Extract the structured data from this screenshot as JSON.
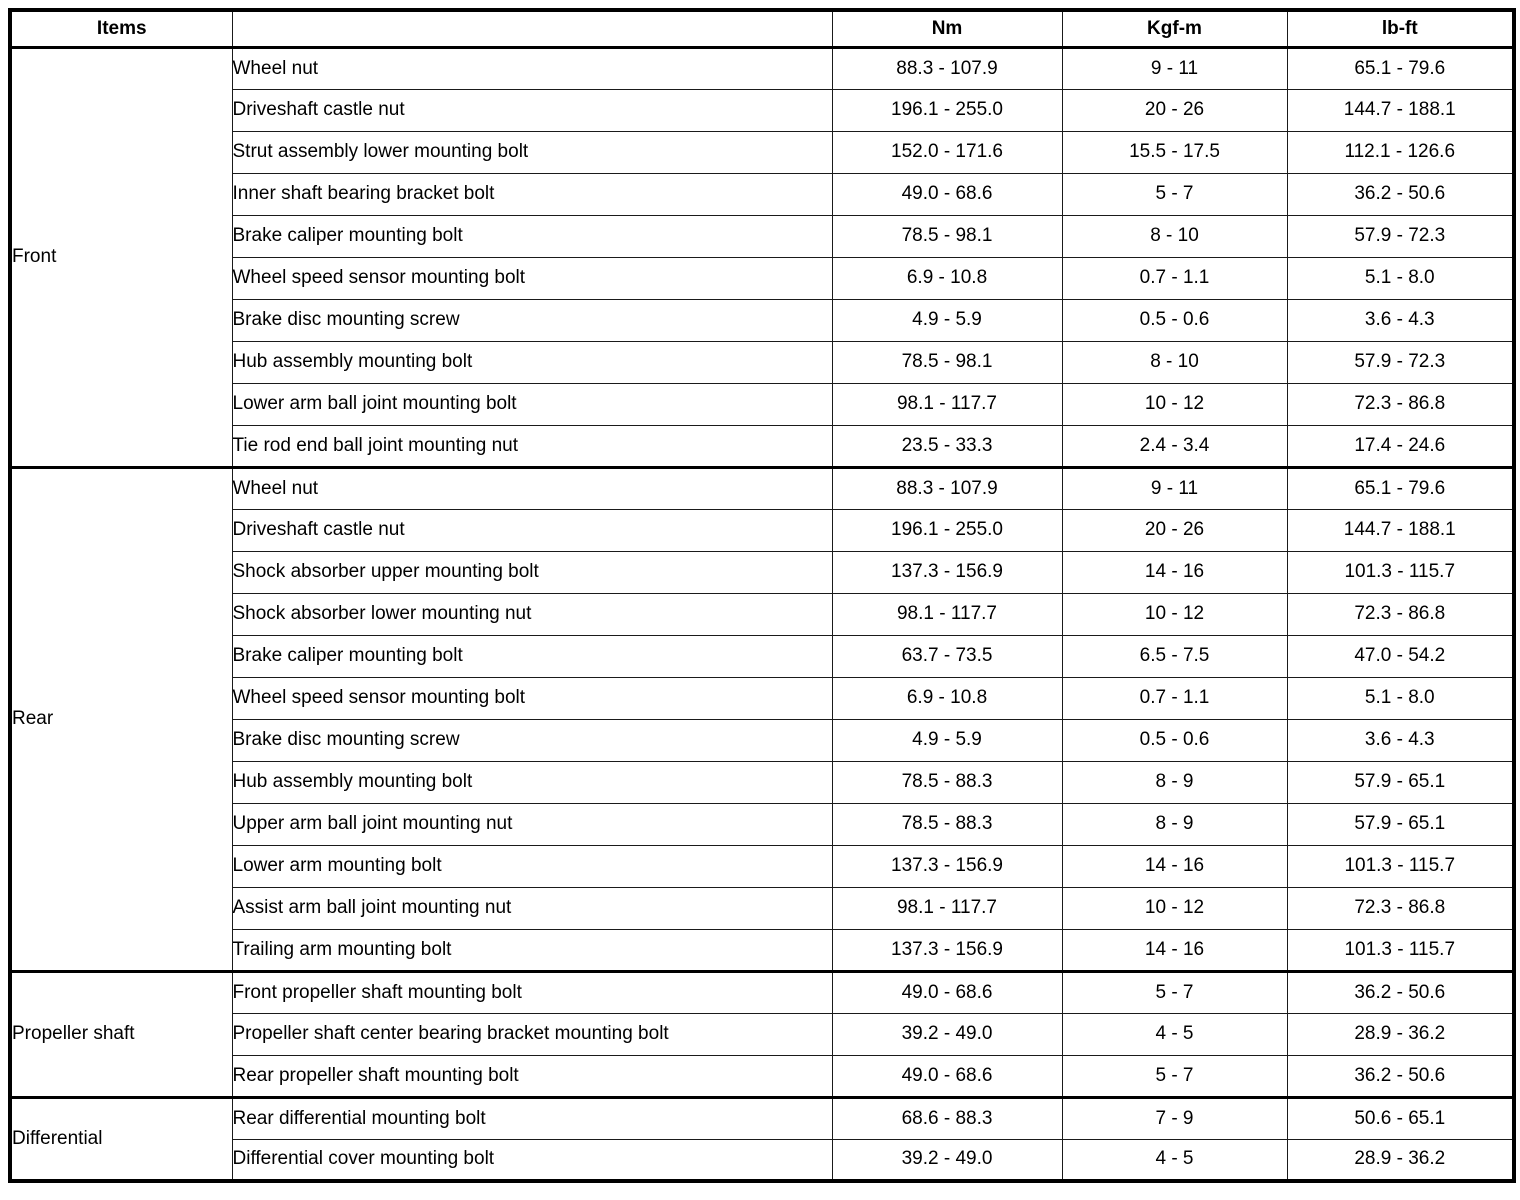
{
  "table": {
    "headers": {
      "items": "Items",
      "item": "",
      "nm": "Nm",
      "kgfm": "Kgf-m",
      "lbft": "lb-ft"
    },
    "groups": [
      {
        "label": "Front",
        "rows": [
          {
            "item": "Wheel nut",
            "nm": "88.3 - 107.9",
            "kgfm": "9 - 11",
            "lbft": "65.1 - 79.6"
          },
          {
            "item": "Driveshaft castle nut",
            "nm": "196.1 - 255.0",
            "kgfm": "20 - 26",
            "lbft": "144.7 - 188.1"
          },
          {
            "item": "Strut assembly lower mounting bolt",
            "nm": "152.0 - 171.6",
            "kgfm": "15.5 - 17.5",
            "lbft": "112.1 - 126.6"
          },
          {
            "item": "Inner shaft bearing bracket bolt",
            "nm": "49.0 - 68.6",
            "kgfm": "5 - 7",
            "lbft": "36.2 - 50.6"
          },
          {
            "item": "Brake caliper mounting bolt",
            "nm": "78.5 - 98.1",
            "kgfm": "8 - 10",
            "lbft": "57.9 - 72.3"
          },
          {
            "item": "Wheel speed sensor mounting bolt",
            "nm": "6.9 - 10.8",
            "kgfm": "0.7 - 1.1",
            "lbft": "5.1 - 8.0"
          },
          {
            "item": "Brake disc mounting screw",
            "nm": "4.9 - 5.9",
            "kgfm": "0.5 - 0.6",
            "lbft": "3.6 - 4.3"
          },
          {
            "item": "Hub assembly mounting bolt",
            "nm": "78.5 - 98.1",
            "kgfm": "8 - 10",
            "lbft": "57.9 - 72.3"
          },
          {
            "item": "Lower arm ball joint mounting bolt",
            "nm": "98.1 - 117.7",
            "kgfm": "10 - 12",
            "lbft": "72.3 - 86.8"
          },
          {
            "item": "Tie rod end ball joint mounting nut",
            "nm": "23.5 - 33.3",
            "kgfm": "2.4 - 3.4",
            "lbft": "17.4 - 24.6"
          }
        ]
      },
      {
        "label": "Rear",
        "rows": [
          {
            "item": "Wheel nut",
            "nm": "88.3 - 107.9",
            "kgfm": "9 - 11",
            "lbft": "65.1 - 79.6"
          },
          {
            "item": "Driveshaft castle nut",
            "nm": "196.1 - 255.0",
            "kgfm": "20 - 26",
            "lbft": "144.7 - 188.1"
          },
          {
            "item": "Shock absorber upper mounting bolt",
            "nm": "137.3 - 156.9",
            "kgfm": "14 - 16",
            "lbft": "101.3 - 115.7"
          },
          {
            "item": "Shock absorber lower mounting nut",
            "nm": "98.1 - 117.7",
            "kgfm": "10 - 12",
            "lbft": "72.3 - 86.8"
          },
          {
            "item": "Brake caliper mounting bolt",
            "nm": "63.7 - 73.5",
            "kgfm": "6.5 - 7.5",
            "lbft": "47.0 - 54.2"
          },
          {
            "item": "Wheel speed sensor mounting bolt",
            "nm": "6.9 - 10.8",
            "kgfm": "0.7 - 1.1",
            "lbft": "5.1 - 8.0"
          },
          {
            "item": "Brake disc mounting screw",
            "nm": "4.9 - 5.9",
            "kgfm": "0.5 - 0.6",
            "lbft": "3.6 - 4.3"
          },
          {
            "item": "Hub assembly mounting bolt",
            "nm": "78.5 - 88.3",
            "kgfm": "8 - 9",
            "lbft": "57.9 - 65.1"
          },
          {
            "item": "Upper arm ball joint mounting nut",
            "nm": "78.5 - 88.3",
            "kgfm": "8 - 9",
            "lbft": "57.9 - 65.1"
          },
          {
            "item": "Lower arm mounting bolt",
            "nm": "137.3 - 156.9",
            "kgfm": "14 - 16",
            "lbft": "101.3 - 115.7"
          },
          {
            "item": "Assist arm ball joint mounting nut",
            "nm": "98.1 - 117.7",
            "kgfm": "10 - 12",
            "lbft": "72.3 - 86.8"
          },
          {
            "item": "Trailing arm mounting bolt",
            "nm": "137.3 - 156.9",
            "kgfm": "14 - 16",
            "lbft": "101.3 - 115.7"
          }
        ]
      },
      {
        "label": "Propeller shaft",
        "rows": [
          {
            "item": "Front propeller shaft mounting bolt",
            "nm": "49.0 - 68.6",
            "kgfm": "5 - 7",
            "lbft": "36.2 - 50.6"
          },
          {
            "item": "Propeller shaft center bearing bracket mounting bolt",
            "nm": "39.2 - 49.0",
            "kgfm": "4 - 5",
            "lbft": "28.9 - 36.2"
          },
          {
            "item": "Rear propeller shaft mounting bolt",
            "nm": "49.0 - 68.6",
            "kgfm": "5 - 7",
            "lbft": "36.2 - 50.6"
          }
        ]
      },
      {
        "label": "Differential",
        "rows": [
          {
            "item": "Rear differential mounting bolt",
            "nm": "68.6 - 88.3",
            "kgfm": "7 - 9",
            "lbft": "50.6 - 65.1"
          },
          {
            "item": "Differential cover mounting bolt",
            "nm": "39.2 - 49.0",
            "kgfm": "4 - 5",
            "lbft": "28.9 - 36.2"
          }
        ]
      }
    ]
  }
}
